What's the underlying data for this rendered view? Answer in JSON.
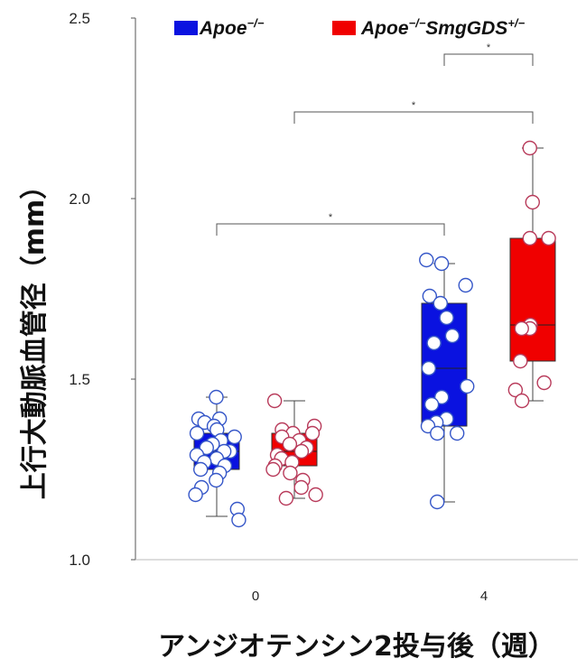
{
  "chart_data": {
    "type": "box",
    "ylabel": "上行大動脈血管径（mm）",
    "xlabel": "アンジオテンシン2投与後（週）",
    "ylim": [
      1.0,
      2.5
    ],
    "yticks": [
      "1.0",
      "1.5",
      "2.0",
      "2.5"
    ],
    "categories": [
      "0",
      "4"
    ],
    "legend_position": "top",
    "series": [
      {
        "name": "Apoe",
        "name_sup": "−/−",
        "color": "#0a12e0",
        "point_color": "#3556c8",
        "boxes": [
          {
            "category": "0",
            "whisker_low": 1.12,
            "q1": 1.25,
            "median": 1.3,
            "q3": 1.35,
            "whisker_high": 1.45,
            "points": [
              1.45,
              1.39,
              1.39,
              1.38,
              1.37,
              1.36,
              1.35,
              1.34,
              1.33,
              1.32,
              1.31,
              1.3,
              1.3,
              1.29,
              1.28,
              1.27,
              1.26,
              1.25,
              1.24,
              1.22,
              1.2,
              1.18,
              1.14,
              1.11
            ]
          },
          {
            "category": "4",
            "whisker_low": 1.16,
            "q1": 1.37,
            "median": 1.53,
            "q3": 1.71,
            "whisker_high": 1.82,
            "points": [
              1.83,
              1.82,
              1.76,
              1.73,
              1.71,
              1.67,
              1.62,
              1.6,
              1.53,
              1.48,
              1.45,
              1.43,
              1.39,
              1.38,
              1.37,
              1.35,
              1.35,
              1.16
            ]
          }
        ]
      },
      {
        "name": "Apoe",
        "name_sup_1": "−/−",
        "name_main": "SmgGDS",
        "name_sup_2": "+/−",
        "color": "#f00000",
        "point_color": "#b83a5a",
        "boxes": [
          {
            "category": "0",
            "whisker_low": 1.17,
            "q1": 1.26,
            "median": 1.3,
            "q3": 1.35,
            "whisker_high": 1.44,
            "points": [
              1.44,
              1.37,
              1.36,
              1.35,
              1.35,
              1.34,
              1.33,
              1.32,
              1.31,
              1.3,
              1.29,
              1.28,
              1.27,
              1.26,
              1.25,
              1.24,
              1.22,
              1.2,
              1.18,
              1.17
            ]
          },
          {
            "category": "4",
            "whisker_low": 1.44,
            "q1": 1.55,
            "median": 1.65,
            "q3": 1.89,
            "whisker_high": 2.14,
            "points": [
              2.14,
              1.99,
              1.89,
              1.89,
              1.65,
              1.64,
              1.64,
              1.55,
              1.49,
              1.47,
              1.44
            ]
          }
        ]
      }
    ],
    "significance": [
      {
        "label": "*",
        "from": {
          "category": "0",
          "series": 0
        },
        "to": {
          "category": "4",
          "series": 0
        },
        "y": 1.93
      },
      {
        "label": "*",
        "from": {
          "category": "0",
          "series": 1
        },
        "to": {
          "category": "4",
          "series": 1
        },
        "y": 2.24
      },
      {
        "label": "*",
        "from": {
          "category": "4",
          "series": 0
        },
        "to": {
          "category": "4",
          "series": 1
        },
        "y": 2.4
      }
    ]
  }
}
